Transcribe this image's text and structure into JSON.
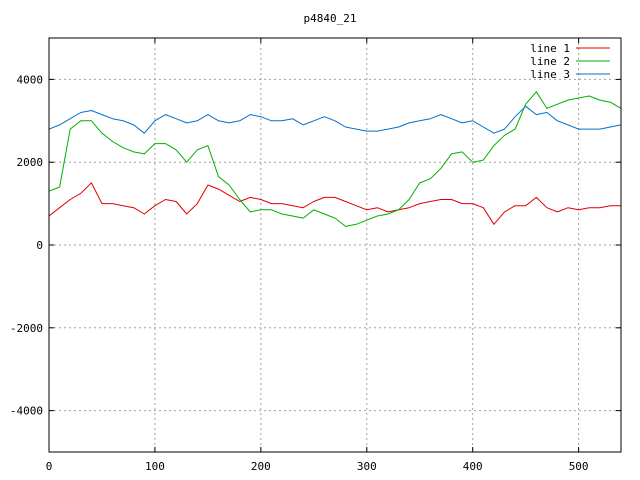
{
  "chart_data": {
    "type": "line",
    "title": "p4840_21",
    "xlabel": "",
    "ylabel": "",
    "xlim": [
      0,
      540
    ],
    "ylim": [
      -5000,
      5000
    ],
    "xticks": [
      0,
      100,
      200,
      300,
      400,
      500
    ],
    "yticks": [
      -4000,
      -2000,
      0,
      2000,
      4000
    ],
    "grid": true,
    "legend_position": "top-right",
    "x": [
      0,
      10,
      20,
      30,
      40,
      50,
      60,
      70,
      80,
      90,
      100,
      110,
      120,
      130,
      140,
      150,
      160,
      170,
      180,
      190,
      200,
      210,
      220,
      230,
      240,
      250,
      260,
      270,
      280,
      290,
      300,
      310,
      320,
      330,
      340,
      350,
      360,
      370,
      380,
      390,
      400,
      410,
      420,
      430,
      440,
      450,
      460,
      470,
      480,
      490,
      500,
      510,
      520,
      530,
      540
    ],
    "series": [
      {
        "name": "line 1",
        "color": "#e00000",
        "values": [
          700,
          900,
          1100,
          1250,
          1500,
          1000,
          1000,
          950,
          900,
          750,
          950,
          1100,
          1050,
          750,
          1000,
          1450,
          1350,
          1200,
          1050,
          1150,
          1100,
          1000,
          1000,
          950,
          900,
          1050,
          1150,
          1150,
          1050,
          950,
          850,
          900,
          800,
          850,
          900,
          1000,
          1050,
          1100,
          1100,
          1000,
          1000,
          900,
          500,
          800,
          950,
          950,
          1150,
          900,
          800,
          900,
          850,
          900,
          900,
          950,
          950
        ]
      },
      {
        "name": "line 2",
        "color": "#00b000",
        "values": [
          1300,
          1400,
          2800,
          3000,
          3000,
          2700,
          2500,
          2350,
          2250,
          2200,
          2450,
          2450,
          2300,
          2000,
          2300,
          2400,
          1650,
          1450,
          1100,
          800,
          850,
          850,
          750,
          700,
          650,
          850,
          750,
          650,
          450,
          500,
          600,
          700,
          750,
          850,
          1100,
          1500,
          1600,
          1850,
          2200,
          2250,
          2000,
          2050,
          2400,
          2650,
          2800,
          3400,
          3700,
          3300,
          3400,
          3500,
          3550,
          3600,
          3500,
          3450,
          3300
        ]
      },
      {
        "name": "line 3",
        "color": "#0070d0",
        "values": [
          2800,
          2900,
          3050,
          3200,
          3250,
          3150,
          3050,
          3000,
          2900,
          2700,
          3000,
          3150,
          3050,
          2950,
          3000,
          3150,
          3000,
          2950,
          3000,
          3150,
          3100,
          3000,
          3000,
          3050,
          2900,
          3000,
          3100,
          3000,
          2850,
          2800,
          2750,
          2750,
          2800,
          2850,
          2950,
          3000,
          3050,
          3150,
          3050,
          2950,
          3000,
          2850,
          2700,
          2800,
          3100,
          3350,
          3150,
          3200,
          3000,
          2900,
          2800,
          2800,
          2800,
          2850,
          2900
        ]
      }
    ]
  }
}
